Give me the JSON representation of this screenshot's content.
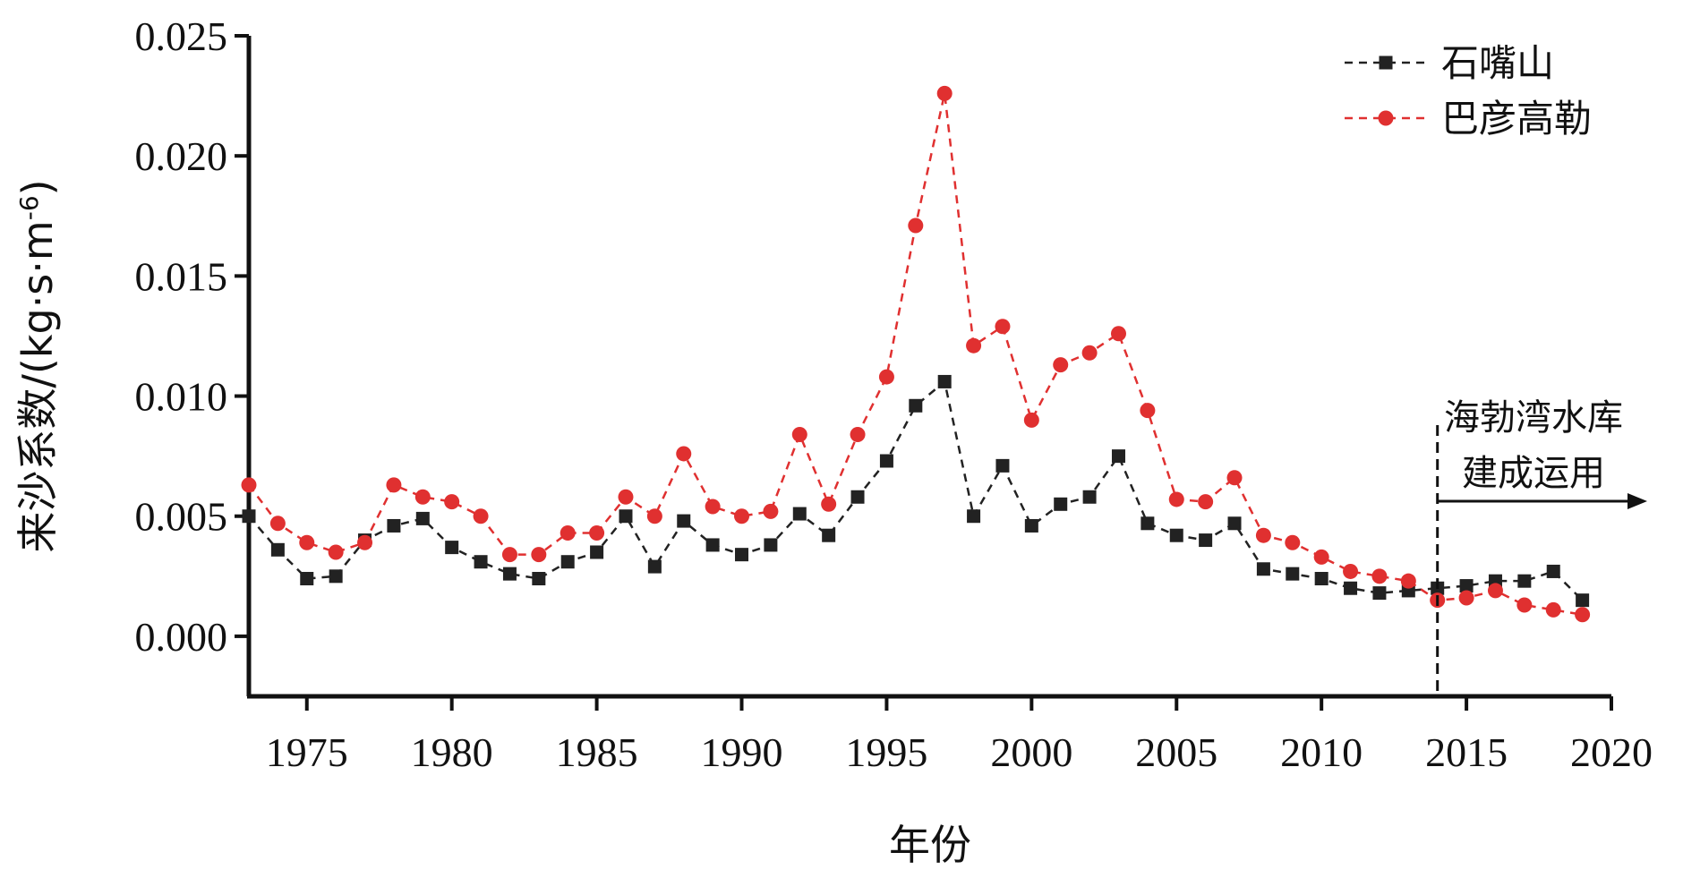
{
  "colors": {
    "series_black": "#222222",
    "series_red": "#e03030",
    "axis": "#111111"
  },
  "chart_data": {
    "type": "line",
    "title": "",
    "xlabel": "年份",
    "ylabel": "来沙系数/(kg·s·m",
    "ylabel_sup": "-6",
    "ylabel_close": ")",
    "xlim": [
      1973,
      2020
    ],
    "ylim": [
      -0.0025,
      0.025
    ],
    "xticks": [
      1975,
      1980,
      1985,
      1990,
      1995,
      2000,
      2005,
      2010,
      2015,
      2020
    ],
    "yticks": [
      0.0,
      0.005,
      0.01,
      0.015,
      0.02,
      0.025
    ],
    "ytick_labels": [
      "0.000",
      "0.005",
      "0.010",
      "0.015",
      "0.020",
      "0.025"
    ],
    "grid": false,
    "legend_position": "top-right",
    "x": [
      1973,
      1974,
      1975,
      1976,
      1977,
      1978,
      1979,
      1980,
      1981,
      1982,
      1983,
      1984,
      1985,
      1986,
      1987,
      1988,
      1989,
      1990,
      1991,
      1992,
      1993,
      1994,
      1995,
      1996,
      1997,
      1998,
      1999,
      2000,
      2001,
      2002,
      2003,
      2004,
      2005,
      2006,
      2007,
      2008,
      2009,
      2010,
      2011,
      2012,
      2013,
      2014,
      2015,
      2016,
      2017,
      2018,
      2019
    ],
    "series": [
      {
        "name": "石嘴山",
        "marker": "square",
        "values": [
          0.005,
          0.0036,
          0.0024,
          0.0025,
          0.004,
          0.0046,
          0.0049,
          0.0037,
          0.0031,
          0.0026,
          0.0024,
          0.0031,
          0.0035,
          0.005,
          0.0029,
          0.0048,
          0.0038,
          0.0034,
          0.0038,
          0.0051,
          0.0042,
          0.0058,
          0.0073,
          0.0096,
          0.0106,
          0.005,
          0.0071,
          0.0046,
          0.0055,
          0.0058,
          0.0075,
          0.0047,
          0.0042,
          0.004,
          0.0047,
          0.0028,
          0.0026,
          0.0024,
          0.002,
          0.0018,
          0.0019,
          0.002,
          0.0021,
          0.0023,
          0.0023,
          0.0027,
          0.0015
        ]
      },
      {
        "name": "巴彦高勒",
        "marker": "circle",
        "values": [
          0.0063,
          0.0047,
          0.0039,
          0.0035,
          0.0039,
          0.0063,
          0.0058,
          0.0056,
          0.005,
          0.0034,
          0.0034,
          0.0043,
          0.0043,
          0.0058,
          0.005,
          0.0076,
          0.0054,
          0.005,
          0.0052,
          0.0084,
          0.0055,
          0.0084,
          0.0108,
          0.0171,
          0.0226,
          0.0121,
          0.0129,
          0.009,
          0.0113,
          0.0118,
          0.0126,
          0.0094,
          0.0057,
          0.0056,
          0.0066,
          0.0042,
          0.0039,
          0.0033,
          0.0027,
          0.0025,
          0.0023,
          0.0015,
          0.0016,
          0.0019,
          0.0013,
          0.0011,
          0.0009
        ]
      }
    ],
    "annotation": {
      "x": 2014,
      "line1": "海勃湾水库",
      "line2": "建成运用"
    }
  }
}
